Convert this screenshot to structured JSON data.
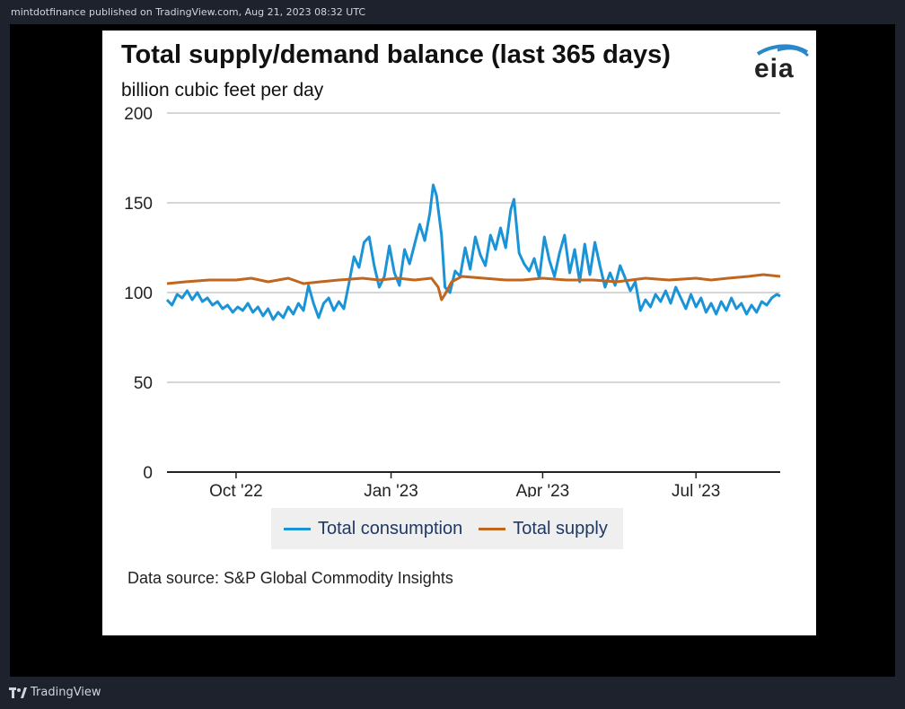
{
  "header": {
    "caption": "mintdotfinance published on TradingView.com, Aug 21, 2023 08:32 UTC"
  },
  "footer": {
    "brand": "TradingView",
    "brand_icon": "tradingview-logo-icon"
  },
  "logo": {
    "text": "eia",
    "icon": "eia-logo-icon"
  },
  "source": "Data source: S&P Global Commodity Insights",
  "colors": {
    "consumption": "#1a94d6",
    "supply": "#c0661e",
    "grid": "#c8c8c8",
    "axis": "#222222"
  },
  "chart_data": {
    "type": "line",
    "title": "Total supply/demand balance (last 365 days)",
    "subtitle": "billion cubic feet per day",
    "ylabel": "",
    "xlabel": "",
    "ylim": [
      0,
      200
    ],
    "yticks": [
      0,
      50,
      100,
      150,
      200
    ],
    "xlim": [
      "2022-08-21",
      "2023-08-20"
    ],
    "xticks": [
      {
        "label": "Oct '22",
        "date": "2022-10-01"
      },
      {
        "label": "Jan '23",
        "date": "2023-01-01"
      },
      {
        "label": "Apr '23",
        "date": "2023-04-01"
      },
      {
        "label": "Jul '23",
        "date": "2023-07-01"
      }
    ],
    "grid": true,
    "legend": "bottom",
    "series": [
      {
        "name": "Total consumption",
        "color": "#1a94d6",
        "points": [
          [
            "2022-08-21",
            96
          ],
          [
            "2022-08-24",
            93
          ],
          [
            "2022-08-27",
            99
          ],
          [
            "2022-08-30",
            97
          ],
          [
            "2022-09-02",
            101
          ],
          [
            "2022-09-05",
            96
          ],
          [
            "2022-09-08",
            100
          ],
          [
            "2022-09-11",
            95
          ],
          [
            "2022-09-14",
            97
          ],
          [
            "2022-09-17",
            93
          ],
          [
            "2022-09-20",
            95
          ],
          [
            "2022-09-23",
            91
          ],
          [
            "2022-09-26",
            93
          ],
          [
            "2022-09-29",
            89
          ],
          [
            "2022-10-02",
            92
          ],
          [
            "2022-10-05",
            90
          ],
          [
            "2022-10-08",
            94
          ],
          [
            "2022-10-11",
            89
          ],
          [
            "2022-10-14",
            92
          ],
          [
            "2022-10-17",
            87
          ],
          [
            "2022-10-20",
            91
          ],
          [
            "2022-10-23",
            85
          ],
          [
            "2022-10-26",
            89
          ],
          [
            "2022-10-29",
            86
          ],
          [
            "2022-11-01",
            92
          ],
          [
            "2022-11-04",
            88
          ],
          [
            "2022-11-07",
            94
          ],
          [
            "2022-11-10",
            90
          ],
          [
            "2022-11-13",
            104
          ],
          [
            "2022-11-16",
            94
          ],
          [
            "2022-11-19",
            86
          ],
          [
            "2022-11-22",
            94
          ],
          [
            "2022-11-25",
            97
          ],
          [
            "2022-11-28",
            90
          ],
          [
            "2022-12-01",
            95
          ],
          [
            "2022-12-04",
            91
          ],
          [
            "2022-12-07",
            105
          ],
          [
            "2022-12-10",
            120
          ],
          [
            "2022-12-13",
            114
          ],
          [
            "2022-12-16",
            128
          ],
          [
            "2022-12-19",
            131
          ],
          [
            "2022-12-22",
            115
          ],
          [
            "2022-12-25",
            103
          ],
          [
            "2022-12-28",
            109
          ],
          [
            "2022-12-31",
            126
          ],
          [
            "2023-01-03",
            111
          ],
          [
            "2023-01-06",
            104
          ],
          [
            "2023-01-09",
            124
          ],
          [
            "2023-01-12",
            116
          ],
          [
            "2023-01-15",
            127
          ],
          [
            "2023-01-18",
            138
          ],
          [
            "2023-01-21",
            129
          ],
          [
            "2023-01-24",
            144
          ],
          [
            "2023-01-26",
            160
          ],
          [
            "2023-01-28",
            154
          ],
          [
            "2023-01-31",
            132
          ],
          [
            "2023-02-02",
            103
          ],
          [
            "2023-02-05",
            100
          ],
          [
            "2023-02-08",
            112
          ],
          [
            "2023-02-11",
            109
          ],
          [
            "2023-02-14",
            125
          ],
          [
            "2023-02-17",
            113
          ],
          [
            "2023-02-20",
            131
          ],
          [
            "2023-02-23",
            121
          ],
          [
            "2023-02-26",
            115
          ],
          [
            "2023-03-01",
            132
          ],
          [
            "2023-03-04",
            124
          ],
          [
            "2023-03-07",
            136
          ],
          [
            "2023-03-10",
            125
          ],
          [
            "2023-03-13",
            146
          ],
          [
            "2023-03-15",
            152
          ],
          [
            "2023-03-18",
            122
          ],
          [
            "2023-03-21",
            116
          ],
          [
            "2023-03-24",
            112
          ],
          [
            "2023-03-27",
            119
          ],
          [
            "2023-03-30",
            108
          ],
          [
            "2023-04-02",
            131
          ],
          [
            "2023-04-05",
            118
          ],
          [
            "2023-04-08",
            109
          ],
          [
            "2023-04-11",
            122
          ],
          [
            "2023-04-14",
            132
          ],
          [
            "2023-04-17",
            111
          ],
          [
            "2023-04-20",
            124
          ],
          [
            "2023-04-23",
            106
          ],
          [
            "2023-04-26",
            127
          ],
          [
            "2023-04-29",
            110
          ],
          [
            "2023-05-02",
            128
          ],
          [
            "2023-05-05",
            115
          ],
          [
            "2023-05-08",
            103
          ],
          [
            "2023-05-11",
            111
          ],
          [
            "2023-05-14",
            104
          ],
          [
            "2023-05-17",
            115
          ],
          [
            "2023-05-20",
            108
          ],
          [
            "2023-05-23",
            101
          ],
          [
            "2023-05-26",
            106
          ],
          [
            "2023-05-29",
            90
          ],
          [
            "2023-06-01",
            96
          ],
          [
            "2023-06-04",
            92
          ],
          [
            "2023-06-07",
            99
          ],
          [
            "2023-06-10",
            95
          ],
          [
            "2023-06-13",
            101
          ],
          [
            "2023-06-16",
            94
          ],
          [
            "2023-06-19",
            103
          ],
          [
            "2023-06-22",
            97
          ],
          [
            "2023-06-25",
            91
          ],
          [
            "2023-06-28",
            99
          ],
          [
            "2023-07-01",
            92
          ],
          [
            "2023-07-04",
            97
          ],
          [
            "2023-07-07",
            89
          ],
          [
            "2023-07-10",
            94
          ],
          [
            "2023-07-13",
            88
          ],
          [
            "2023-07-16",
            95
          ],
          [
            "2023-07-19",
            90
          ],
          [
            "2023-07-22",
            97
          ],
          [
            "2023-07-25",
            91
          ],
          [
            "2023-07-28",
            94
          ],
          [
            "2023-07-31",
            88
          ],
          [
            "2023-08-03",
            93
          ],
          [
            "2023-08-06",
            89
          ],
          [
            "2023-08-09",
            95
          ],
          [
            "2023-08-12",
            93
          ],
          [
            "2023-08-15",
            97
          ],
          [
            "2023-08-18",
            99
          ],
          [
            "2023-08-20",
            98
          ]
        ]
      },
      {
        "name": "Total supply",
        "color": "#c0661e",
        "points": [
          [
            "2022-08-21",
            105
          ],
          [
            "2022-09-01",
            106
          ],
          [
            "2022-09-15",
            107
          ],
          [
            "2022-10-01",
            107
          ],
          [
            "2022-10-10",
            108
          ],
          [
            "2022-10-20",
            106
          ],
          [
            "2022-11-01",
            108
          ],
          [
            "2022-11-10",
            105
          ],
          [
            "2022-11-20",
            106
          ],
          [
            "2022-12-01",
            107
          ],
          [
            "2022-12-15",
            108
          ],
          [
            "2022-12-25",
            107
          ],
          [
            "2023-01-05",
            108
          ],
          [
            "2023-01-15",
            107
          ],
          [
            "2023-01-25",
            108
          ],
          [
            "2023-01-29",
            103
          ],
          [
            "2023-01-31",
            96
          ],
          [
            "2023-02-02",
            99
          ],
          [
            "2023-02-06",
            106
          ],
          [
            "2023-02-12",
            109
          ],
          [
            "2023-02-25",
            108
          ],
          [
            "2023-03-10",
            107
          ],
          [
            "2023-03-20",
            107
          ],
          [
            "2023-04-01",
            108
          ],
          [
            "2023-04-15",
            107
          ],
          [
            "2023-05-01",
            107
          ],
          [
            "2023-05-15",
            106
          ],
          [
            "2023-06-01",
            108
          ],
          [
            "2023-06-15",
            107
          ],
          [
            "2023-07-01",
            108
          ],
          [
            "2023-07-10",
            107
          ],
          [
            "2023-07-20",
            108
          ],
          [
            "2023-08-01",
            109
          ],
          [
            "2023-08-10",
            110
          ],
          [
            "2023-08-20",
            109
          ]
        ]
      }
    ]
  }
}
